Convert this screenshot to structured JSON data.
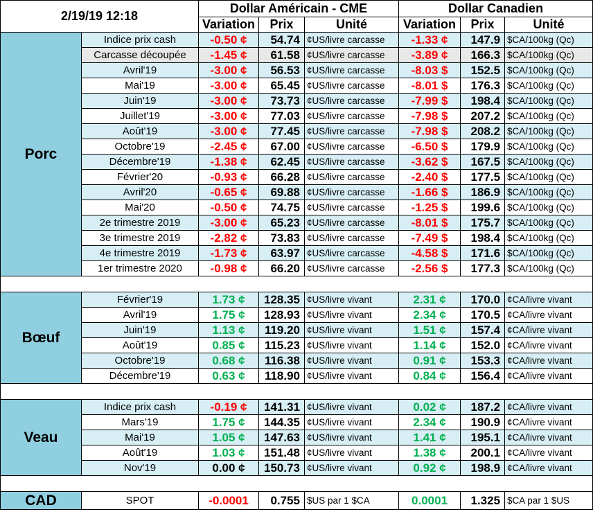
{
  "header": {
    "timestamp": "2/19/19 12:18",
    "usd_group": "Dollar Américain - CME",
    "cad_group": "Dollar Canadien",
    "col_variation": "Variation",
    "col_prix": "Prix",
    "col_unite": "Unité"
  },
  "porc": {
    "label": "Porc",
    "rows": [
      {
        "label": "Indice prix cash",
        "usd_var": "-0.50 ¢",
        "usd_price": "54.74",
        "usd_unit": "¢US/livre carcasse",
        "cad_var": "-1.33 ¢",
        "cad_price": "147.9",
        "cad_unit": "$CA/100kg (Qc)",
        "shade": "light"
      },
      {
        "label": "Carcasse découpée",
        "usd_var": "-1.45 ¢",
        "usd_price": "61.58",
        "usd_unit": "¢US/livre carcasse",
        "cad_var": "-3.89 ¢",
        "cad_price": "166.3",
        "cad_unit": "$CA/100kg (Qc)",
        "shade": "gray"
      },
      {
        "label": "Avril'19",
        "usd_var": "-3.00 ¢",
        "usd_price": "56.53",
        "usd_unit": "¢US/livre carcasse",
        "cad_var": "-8.03 $",
        "cad_price": "152.5",
        "cad_unit": "$CA/100kg (Qc)",
        "shade": "light"
      },
      {
        "label": "Mai'19",
        "usd_var": "-3.00 ¢",
        "usd_price": "65.45",
        "usd_unit": "¢US/livre carcasse",
        "cad_var": "-8.01 $",
        "cad_price": "176.3",
        "cad_unit": "$CA/100kg (Qc)",
        "shade": "white"
      },
      {
        "label": "Juin'19",
        "usd_var": "-3.00 ¢",
        "usd_price": "73.73",
        "usd_unit": "¢US/livre carcasse",
        "cad_var": "-7.99 $",
        "cad_price": "198.4",
        "cad_unit": "$CA/100kg (Qc)",
        "shade": "light"
      },
      {
        "label": "Juillet'19",
        "usd_var": "-3.00 ¢",
        "usd_price": "77.03",
        "usd_unit": "¢US/livre carcasse",
        "cad_var": "-7.98 $",
        "cad_price": "207.2",
        "cad_unit": "$CA/100kg (Qc)",
        "shade": "white"
      },
      {
        "label": "Août'19",
        "usd_var": "-3.00 ¢",
        "usd_price": "77.45",
        "usd_unit": "¢US/livre carcasse",
        "cad_var": "-7.98 $",
        "cad_price": "208.2",
        "cad_unit": "$CA/100kg (Qc)",
        "shade": "light"
      },
      {
        "label": "Octobre'19",
        "usd_var": "-2.45 ¢",
        "usd_price": "67.00",
        "usd_unit": "¢US/livre carcasse",
        "cad_var": "-6.50 $",
        "cad_price": "179.9",
        "cad_unit": "$CA/100kg (Qc)",
        "shade": "white"
      },
      {
        "label": "Décembre'19",
        "usd_var": "-1.38 ¢",
        "usd_price": "62.45",
        "usd_unit": "¢US/livre carcasse",
        "cad_var": "-3.62 $",
        "cad_price": "167.5",
        "cad_unit": "$CA/100kg (Qc)",
        "shade": "light"
      },
      {
        "label": "Février'20",
        "usd_var": "-0.93 ¢",
        "usd_price": "66.28",
        "usd_unit": "¢US/livre carcasse",
        "cad_var": "-2.40 $",
        "cad_price": "177.5",
        "cad_unit": "$CA/100kg (Qc)",
        "shade": "white"
      },
      {
        "label": "Avril'20",
        "usd_var": "-0.65 ¢",
        "usd_price": "69.88",
        "usd_unit": "¢US/livre carcasse",
        "cad_var": "-1.66 $",
        "cad_price": "186.9",
        "cad_unit": "$CA/100kg (Qc)",
        "shade": "light"
      },
      {
        "label": "Mai'20",
        "usd_var": "-0.50 ¢",
        "usd_price": "74.75",
        "usd_unit": "¢US/livre carcasse",
        "cad_var": "-1.25 $",
        "cad_price": "199.6",
        "cad_unit": "$CA/100kg (Qc)",
        "shade": "white"
      },
      {
        "label": "2e trimestre 2019",
        "usd_var": "-3.00 ¢",
        "usd_price": "65.23",
        "usd_unit": "¢US/livre carcasse",
        "cad_var": "-8.01 $",
        "cad_price": "175.7",
        "cad_unit": "$CA/100kg (Qc)",
        "shade": "light"
      },
      {
        "label": "3e trimestre 2019",
        "usd_var": "-2.82 ¢",
        "usd_price": "73.83",
        "usd_unit": "¢US/livre carcasse",
        "cad_var": "-7.49 $",
        "cad_price": "198.4",
        "cad_unit": "$CA/100kg (Qc)",
        "shade": "white"
      },
      {
        "label": "4e trimestre 2019",
        "usd_var": "-1.73 ¢",
        "usd_price": "63.97",
        "usd_unit": "¢US/livre carcasse",
        "cad_var": "-4.58 $",
        "cad_price": "171.6",
        "cad_unit": "$CA/100kg (Qc)",
        "shade": "light"
      },
      {
        "label": "1er trimestre 2020",
        "usd_var": "-0.98 ¢",
        "usd_price": "66.20",
        "usd_unit": "¢US/livre carcasse",
        "cad_var": "-2.56 $",
        "cad_price": "177.3",
        "cad_unit": "$CA/100kg (Qc)",
        "shade": "white"
      }
    ]
  },
  "boeuf": {
    "label": "Bœuf",
    "rows": [
      {
        "label": "Février'19",
        "usd_var": "1.73 ¢",
        "usd_price": "128.35",
        "usd_unit": "¢US/livre vivant",
        "cad_var": "2.31 ¢",
        "cad_price": "170.0",
        "cad_unit": "¢CA/livre vivant",
        "shade": "light"
      },
      {
        "label": "Avril'19",
        "usd_var": "1.75 ¢",
        "usd_price": "128.93",
        "usd_unit": "¢US/livre vivant",
        "cad_var": "2.34 ¢",
        "cad_price": "170.5",
        "cad_unit": "¢CA/livre vivant",
        "shade": "white"
      },
      {
        "label": "Juin'19",
        "usd_var": "1.13 ¢",
        "usd_price": "119.20",
        "usd_unit": "¢US/livre vivant",
        "cad_var": "1.51 ¢",
        "cad_price": "157.4",
        "cad_unit": "¢CA/livre vivant",
        "shade": "light"
      },
      {
        "label": "Août'19",
        "usd_var": "0.85 ¢",
        "usd_price": "115.23",
        "usd_unit": "¢US/livre vivant",
        "cad_var": "1.14 ¢",
        "cad_price": "152.0",
        "cad_unit": "¢CA/livre vivant",
        "shade": "white"
      },
      {
        "label": "Octobre'19",
        "usd_var": "0.68 ¢",
        "usd_price": "116.38",
        "usd_unit": "¢US/livre vivant",
        "cad_var": "0.91 ¢",
        "cad_price": "153.3",
        "cad_unit": "¢CA/livre vivant",
        "shade": "light"
      },
      {
        "label": "Décembre'19",
        "usd_var": "0.63 ¢",
        "usd_price": "118.90",
        "usd_unit": "¢US/livre vivant",
        "cad_var": "0.84 ¢",
        "cad_price": "156.4",
        "cad_unit": "¢CA/livre vivant",
        "shade": "white"
      }
    ]
  },
  "veau": {
    "label": "Veau",
    "rows": [
      {
        "label": "Indice prix cash",
        "usd_var": "-0.19 ¢",
        "usd_price": "141.31",
        "usd_unit": "¢US/livre vivant",
        "cad_var": "0.02 ¢",
        "cad_price": "187.2",
        "cad_unit": "¢CA/livre vivant",
        "shade": "light",
        "usd_color": "neg",
        "cad_color": "pos"
      },
      {
        "label": "Mars'19",
        "usd_var": "1.75 ¢",
        "usd_price": "144.35",
        "usd_unit": "¢US/livre vivant",
        "cad_var": "2.34 ¢",
        "cad_price": "190.9",
        "cad_unit": "¢CA/livre vivant",
        "shade": "white",
        "usd_color": "pos",
        "cad_color": "pos"
      },
      {
        "label": "Mai'19",
        "usd_var": "1.05 ¢",
        "usd_price": "147.63",
        "usd_unit": "¢US/livre vivant",
        "cad_var": "1.41 ¢",
        "cad_price": "195.1",
        "cad_unit": "¢CA/livre vivant",
        "shade": "light",
        "usd_color": "pos",
        "cad_color": "pos"
      },
      {
        "label": "Août'19",
        "usd_var": "1.03 ¢",
        "usd_price": "151.48",
        "usd_unit": "¢US/livre vivant",
        "cad_var": "1.38 ¢",
        "cad_price": "200.1",
        "cad_unit": "¢CA/livre vivant",
        "shade": "white",
        "usd_color": "pos",
        "cad_color": "pos"
      },
      {
        "label": "Nov'19",
        "usd_var": "0.00 ¢",
        "usd_price": "150.73",
        "usd_unit": "¢US/livre vivant",
        "cad_var": "0.92 ¢",
        "cad_price": "198.9",
        "cad_unit": "¢CA/livre vivant",
        "shade": "light",
        "usd_color": "zero",
        "cad_color": "pos"
      }
    ]
  },
  "cad": {
    "label": "CAD",
    "row": {
      "label": "SPOT",
      "usd_var": "-0.0001",
      "usd_price": "0.755",
      "usd_unit": "$US par 1 $CA",
      "cad_var": "0.0001",
      "cad_price": "1.325",
      "cad_unit": "$CA par 1 $US"
    }
  },
  "colors": {
    "negative": "#ff0000",
    "positive": "#00b050",
    "group_bg": "#90cfdf",
    "light_row": "#d6eef4"
  }
}
